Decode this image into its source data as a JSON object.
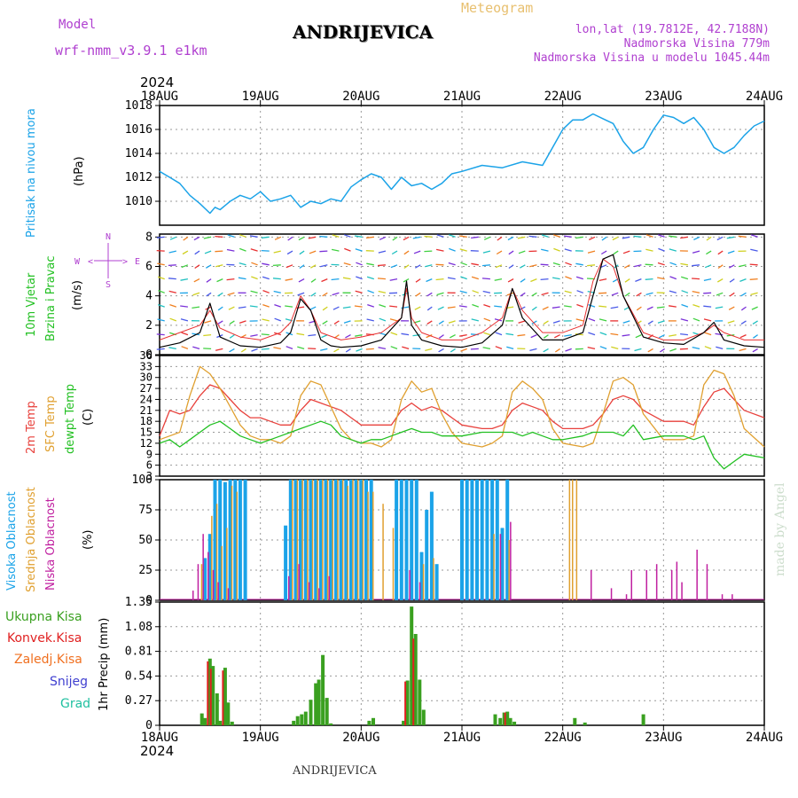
{
  "header": {
    "model_label": "Model",
    "model_name": "wrf-nmm_v3.9.1 e1km",
    "station": "ANDRIJEVICA",
    "meteogram": "Meteogram",
    "lonlat": "lon,lat (19.7812E, 42.7188N)",
    "altitude": "Nadmorska Visina 779m",
    "model_altitude": "Nadmorska Visina u modelu 1045.44m",
    "year_top": "2024",
    "year_bottom": "2024",
    "footer_station": "ANDRIJEVICA",
    "credit": "made by Angel"
  },
  "colors": {
    "pressure": "#1ba3e8",
    "wind_black": "#000000",
    "temp2m": "#e8413c",
    "sfc": "#e0a030",
    "dewpt": "#22c022",
    "high": "#1ba3e8",
    "mid": "#e0a030",
    "low": "#c020a0",
    "total": "#3aa020",
    "convective": "#e02020",
    "frozen": "#f07020",
    "snow": "#4040d0",
    "graupel": "#20c0a0"
  },
  "chart_data": [
    {
      "type": "line",
      "panel": "pressure",
      "ylabel": [
        "Pritisak na nivou mora",
        "(hPa)"
      ],
      "x_ticks": [
        "18AUG",
        "19AUG",
        "20AUG",
        "21AUG",
        "22AUG",
        "23AUG",
        "24AUG"
      ],
      "x_days": [
        0,
        1,
        2,
        3,
        4,
        5,
        6
      ],
      "ylim": [
        1008,
        1018
      ],
      "yticks": [
        1010,
        1012,
        1014,
        1016,
        1018
      ],
      "series": [
        {
          "x": [
            0,
            0.1,
            0.2,
            0.3,
            0.4,
            0.5,
            0.55,
            0.6,
            0.7,
            0.8,
            0.9,
            1.0,
            1.1,
            1.2,
            1.3,
            1.4,
            1.5,
            1.6,
            1.7,
            1.8,
            1.9,
            2.0,
            2.1,
            2.2,
            2.3,
            2.4,
            2.5,
            2.6,
            2.7,
            2.8,
            2.9,
            3.0,
            3.2,
            3.4,
            3.6,
            3.8,
            4.0,
            4.1,
            4.2,
            4.3,
            4.4,
            4.5,
            4.6,
            4.7,
            4.8,
            4.9,
            5.0,
            5.1,
            5.2,
            5.3,
            5.4,
            5.5,
            5.6,
            5.7,
            5.8,
            5.9,
            6.0
          ],
          "y": [
            1012.5,
            1012.0,
            1011.5,
            1010.5,
            1009.8,
            1009.0,
            1009.5,
            1009.3,
            1010.0,
            1010.5,
            1010.2,
            1010.8,
            1010.0,
            1010.2,
            1010.5,
            1009.5,
            1010.0,
            1009.8,
            1010.2,
            1010.0,
            1011.2,
            1011.8,
            1012.3,
            1012.0,
            1011.0,
            1012.0,
            1011.3,
            1011.5,
            1011.0,
            1011.5,
            1012.3,
            1012.5,
            1013.0,
            1012.8,
            1013.3,
            1013.0,
            1016.0,
            1016.8,
            1016.8,
            1017.3,
            1016.9,
            1016.5,
            1015.0,
            1014.0,
            1014.5,
            1016.0,
            1017.2,
            1017.0,
            1016.5,
            1017.0,
            1016.0,
            1014.5,
            1014.0,
            1014.5,
            1015.5,
            1016.3,
            1016.7
          ]
        }
      ]
    },
    {
      "type": "line",
      "panel": "wind",
      "ylabel": [
        "10m Vjetar",
        "Brzina i Pravac",
        "(m/s)"
      ],
      "compass": {
        "n": "N",
        "e": "E",
        "w": "W",
        "s": "S",
        "arrow_left": "<",
        "arrow_right": ">"
      },
      "ylim": [
        0,
        8.2
      ],
      "yticks": [
        0,
        2,
        4,
        6,
        8
      ],
      "series": [
        {
          "name": "speed",
          "x": [
            0,
            0.2,
            0.4,
            0.5,
            0.6,
            0.8,
            1.0,
            1.2,
            1.3,
            1.4,
            1.5,
            1.6,
            1.7,
            1.8,
            2.0,
            2.2,
            2.4,
            2.45,
            2.5,
            2.6,
            2.8,
            3.0,
            3.2,
            3.4,
            3.5,
            3.6,
            3.8,
            4.0,
            4.2,
            4.3,
            4.4,
            4.5,
            4.6,
            4.8,
            5.0,
            5.2,
            5.4,
            5.5,
            5.6,
            5.8,
            6.0
          ],
          "y": [
            0.5,
            0.8,
            1.5,
            3.5,
            1.2,
            0.6,
            0.5,
            0.8,
            1.5,
            3.8,
            3.0,
            1.0,
            0.6,
            0.5,
            0.6,
            1.0,
            2.5,
            5.0,
            2.0,
            1.0,
            0.6,
            0.5,
            0.8,
            2.0,
            4.5,
            2.5,
            1.0,
            1.0,
            1.5,
            4.0,
            6.5,
            6.8,
            4.0,
            1.2,
            0.8,
            0.7,
            1.5,
            2.2,
            1.0,
            0.6,
            0.5
          ]
        },
        {
          "name": "gust",
          "x": [
            0,
            0.2,
            0.4,
            0.5,
            0.6,
            0.8,
            1.0,
            1.2,
            1.3,
            1.4,
            1.5,
            1.6,
            1.8,
            2.0,
            2.2,
            2.4,
            2.45,
            2.5,
            2.6,
            2.8,
            3.0,
            3.2,
            3.4,
            3.5,
            3.6,
            3.8,
            4.0,
            4.2,
            4.3,
            4.4,
            4.5,
            4.6,
            4.8,
            5.0,
            5.2,
            5.4,
            5.5,
            5.6,
            5.8,
            6.0
          ],
          "y": [
            1.0,
            1.5,
            2.0,
            3.0,
            1.8,
            1.2,
            1.0,
            1.5,
            2.2,
            4.0,
            3.0,
            1.5,
            1.0,
            1.2,
            1.5,
            2.5,
            4.5,
            2.5,
            1.5,
            1.0,
            1.0,
            1.5,
            2.5,
            4.5,
            3.0,
            1.5,
            1.5,
            2.0,
            5.0,
            6.5,
            6.0,
            4.0,
            1.5,
            1.0,
            1.0,
            1.5,
            2.0,
            1.5,
            1.0,
            1.0
          ]
        }
      ]
    },
    {
      "type": "line",
      "panel": "temperature",
      "ylabel": [
        "2m Temp",
        "SFC Temp",
        "dewpt Temp",
        "(C)"
      ],
      "ylim": [
        3,
        36
      ],
      "yticks": [
        3,
        6,
        9,
        12,
        15,
        18,
        21,
        24,
        27,
        30,
        33,
        36
      ],
      "series": [
        {
          "name": "2m",
          "x": [
            0,
            0.1,
            0.2,
            0.3,
            0.4,
            0.5,
            0.6,
            0.7,
            0.8,
            0.9,
            1.0,
            1.1,
            1.2,
            1.3,
            1.4,
            1.5,
            1.6,
            1.7,
            1.8,
            1.9,
            2.0,
            2.1,
            2.2,
            2.3,
            2.4,
            2.5,
            2.6,
            2.7,
            2.8,
            2.9,
            3.0,
            3.2,
            3.3,
            3.4,
            3.5,
            3.6,
            3.7,
            3.8,
            3.9,
            4.0,
            4.2,
            4.3,
            4.4,
            4.5,
            4.6,
            4.7,
            4.8,
            5.0,
            5.2,
            5.3,
            5.4,
            5.5,
            5.6,
            5.7,
            5.8,
            6.0
          ],
          "y": [
            14,
            21,
            20,
            21,
            25,
            28,
            27,
            24,
            21,
            19,
            19,
            18,
            17,
            17,
            21,
            24,
            23,
            22,
            21,
            19,
            17,
            17,
            17,
            17,
            21,
            23,
            21,
            22,
            21,
            19,
            17,
            16,
            16,
            17,
            21,
            23,
            22,
            21,
            18,
            16,
            16,
            17,
            20,
            24,
            25,
            24,
            21,
            18,
            18,
            17,
            22,
            26,
            27,
            24,
            21,
            19
          ]
        },
        {
          "name": "sfc",
          "x": [
            0,
            0.1,
            0.2,
            0.3,
            0.4,
            0.5,
            0.6,
            0.7,
            0.8,
            0.9,
            1.0,
            1.1,
            1.2,
            1.3,
            1.4,
            1.5,
            1.6,
            1.7,
            1.8,
            1.9,
            2.0,
            2.1,
            2.2,
            2.3,
            2.4,
            2.5,
            2.6,
            2.7,
            2.8,
            2.9,
            3.0,
            3.2,
            3.3,
            3.4,
            3.5,
            3.6,
            3.7,
            3.8,
            3.9,
            4.0,
            4.2,
            4.3,
            4.4,
            4.5,
            4.6,
            4.7,
            4.8,
            5.0,
            5.2,
            5.3,
            5.4,
            5.5,
            5.6,
            5.7,
            5.8,
            6.0
          ],
          "y": [
            13,
            14,
            15,
            25,
            33,
            31,
            27,
            22,
            17,
            14,
            13,
            13,
            12,
            14,
            25,
            29,
            28,
            22,
            16,
            13,
            12,
            12,
            11,
            13,
            24,
            29,
            26,
            27,
            20,
            15,
            12,
            11,
            12,
            14,
            26,
            29,
            27,
            24,
            16,
            12,
            11,
            12,
            20,
            29,
            30,
            28,
            20,
            13,
            13,
            14,
            28,
            32,
            31,
            25,
            16,
            11
          ]
        },
        {
          "name": "dewpt",
          "x": [
            0,
            0.1,
            0.2,
            0.3,
            0.4,
            0.5,
            0.6,
            0.7,
            0.8,
            0.9,
            1.0,
            1.1,
            1.2,
            1.3,
            1.4,
            1.5,
            1.6,
            1.7,
            1.8,
            1.9,
            2.0,
            2.1,
            2.2,
            2.3,
            2.4,
            2.5,
            2.6,
            2.7,
            2.8,
            2.9,
            3.0,
            3.2,
            3.3,
            3.4,
            3.5,
            3.6,
            3.7,
            3.8,
            3.9,
            4.0,
            4.2,
            4.3,
            4.4,
            4.5,
            4.6,
            4.7,
            4.8,
            5.0,
            5.2,
            5.3,
            5.4,
            5.5,
            5.6,
            5.7,
            5.8,
            6.0
          ],
          "y": [
            12,
            13,
            11,
            13,
            15,
            17,
            18,
            16,
            14,
            13,
            12,
            13,
            14,
            15,
            16,
            17,
            18,
            17,
            14,
            13,
            12,
            13,
            13,
            14,
            15,
            16,
            15,
            15,
            14,
            14,
            14,
            15,
            15,
            15,
            15,
            14,
            15,
            14,
            13,
            13,
            14,
            15,
            15,
            15,
            14,
            17,
            13,
            14,
            14,
            13,
            14,
            8,
            5,
            7,
            9,
            8
          ]
        }
      ]
    },
    {
      "type": "bar",
      "panel": "clouds",
      "ylabel": [
        "Visoka Oblacnost",
        "Srednja Oblacnost",
        "Niska Oblacnost",
        "(%)"
      ],
      "ylim": [
        0,
        100
      ],
      "yticks": [
        0,
        25,
        50,
        75,
        100
      ],
      "series": [
        {
          "name": "high",
          "x": [
            0.45,
            0.5,
            0.55,
            0.6,
            0.65,
            0.7,
            0.75,
            0.8,
            0.85,
            1.25,
            1.3,
            1.35,
            1.4,
            1.45,
            1.5,
            1.55,
            1.6,
            1.65,
            1.7,
            1.75,
            1.8,
            1.85,
            1.9,
            1.95,
            2.0,
            2.05,
            2.1,
            2.35,
            2.4,
            2.45,
            2.5,
            2.55,
            2.6,
            2.65,
            2.7,
            2.75,
            3.0,
            3.05,
            3.1,
            3.15,
            3.2,
            3.25,
            3.3,
            3.35,
            3.4,
            3.45
          ],
          "y": [
            35,
            55,
            100,
            100,
            98,
            100,
            100,
            100,
            100,
            62,
            100,
            100,
            100,
            100,
            100,
            100,
            100,
            100,
            100,
            100,
            100,
            100,
            100,
            100,
            100,
            100,
            100,
            100,
            100,
            100,
            100,
            100,
            40,
            75,
            90,
            30,
            100,
            100,
            100,
            100,
            100,
            100,
            100,
            100,
            60,
            100
          ]
        },
        {
          "name": "mid",
          "x": [
            0.4,
            0.5,
            0.55,
            0.6,
            0.65,
            0.7,
            0.75,
            1.3,
            1.35,
            1.4,
            1.45,
            1.5,
            1.55,
            1.6,
            1.65,
            1.7,
            1.75,
            1.8,
            1.85,
            1.9,
            1.95,
            2.0,
            2.05,
            2.1,
            2.2,
            2.3,
            2.6,
            2.7,
            3.3,
            3.45,
            4.05,
            4.08,
            4.12
          ],
          "y": [
            30,
            70,
            80,
            45,
            60,
            95,
            90,
            100,
            100,
            100,
            100,
            100,
            100,
            100,
            100,
            100,
            100,
            100,
            95,
            100,
            100,
            100,
            90,
            90,
            80,
            60,
            30,
            35,
            55,
            50,
            100,
            100,
            100
          ]
        },
        {
          "name": "low",
          "x": [
            0.35,
            0.4,
            0.45,
            0.5,
            0.55,
            0.6,
            0.7,
            1.3,
            1.4,
            1.5,
            1.6,
            1.7,
            2.5,
            2.6,
            3.4,
            3.5,
            4.3,
            4.5,
            4.65,
            4.7,
            4.85,
            4.95,
            5.1,
            5.15,
            5.2,
            5.35,
            5.45,
            5.6,
            5.7
          ],
          "y": [
            8,
            30,
            55,
            40,
            25,
            15,
            10,
            20,
            30,
            15,
            10,
            20,
            25,
            15,
            55,
            65,
            25,
            10,
            5,
            25,
            25,
            30,
            25,
            32,
            15,
            42,
            30,
            5,
            5
          ]
        }
      ]
    },
    {
      "type": "bar",
      "panel": "precip",
      "ylabel": [
        "1hr Precip (mm)"
      ],
      "legend": [
        "Ukupna Kisa",
        "Konvek.Kisa",
        "Zaledj.Kisa",
        "Snijeg",
        "Grad"
      ],
      "ylim": [
        0,
        1.35
      ],
      "yticks": [
        0,
        0.27,
        0.54,
        0.81,
        1.08,
        1.35
      ],
      "series": [
        {
          "name": "total",
          "x": [
            0.42,
            0.45,
            0.5,
            0.53,
            0.57,
            0.6,
            0.65,
            0.68,
            0.72,
            1.33,
            1.37,
            1.41,
            1.45,
            1.5,
            1.55,
            1.58,
            1.62,
            1.66,
            1.7,
            2.08,
            2.12,
            2.42,
            2.46,
            2.5,
            2.54,
            2.58,
            2.62,
            3.33,
            3.38,
            3.42,
            3.45,
            3.48,
            3.52,
            4.12,
            4.22,
            4.8
          ],
          "y": [
            0.13,
            0.08,
            0.73,
            0.65,
            0.35,
            0.05,
            0.63,
            0.25,
            0.04,
            0.05,
            0.1,
            0.12,
            0.15,
            0.28,
            0.46,
            0.5,
            0.77,
            0.3,
            0.02,
            0.05,
            0.08,
            0.05,
            0.49,
            1.3,
            1.0,
            0.5,
            0.17,
            0.12,
            0.08,
            0.14,
            0.15,
            0.08,
            0.04,
            0.08,
            0.03,
            0.12
          ]
        },
        {
          "name": "convective",
          "x": [
            0.5,
            0.53,
            0.65,
            2.46,
            2.54,
            3.45
          ],
          "y": [
            0.7,
            0.62,
            0.6,
            0.48,
            0.95,
            0.14
          ]
        }
      ]
    }
  ]
}
